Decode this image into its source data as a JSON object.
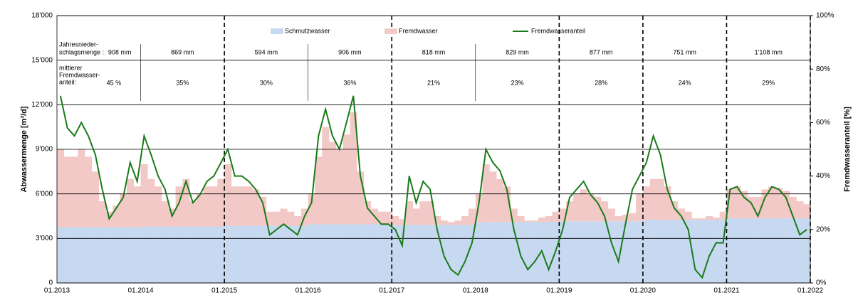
{
  "chart_data": {
    "type": "stacked-bar-line",
    "y_label": "Abwassermenge [m³/d]",
    "y2_label": "Fremdwasseranteil [%]",
    "xlim": [
      2013,
      2022
    ],
    "xticks": [
      {
        "value": 2013,
        "label": "01.2013"
      },
      {
        "value": 2014,
        "label": "01.2014"
      },
      {
        "value": 2015,
        "label": "01.2015"
      },
      {
        "value": 2016,
        "label": "01.2016"
      },
      {
        "value": 2017,
        "label": "01.2017"
      },
      {
        "value": 2018,
        "label": "01.2018"
      },
      {
        "value": 2019,
        "label": "01.2019"
      },
      {
        "value": 2020,
        "label": "01.2020"
      },
      {
        "value": 2021,
        "label": "01.2021"
      },
      {
        "value": 2022,
        "label": "01.2022"
      }
    ],
    "ylim": [
      0,
      18000
    ],
    "yticks": [
      0,
      {
        "value": 3000,
        "label": "3'000"
      },
      {
        "value": 6000,
        "label": "6'000"
      },
      {
        "value": 9000,
        "label": "9'000"
      },
      {
        "value": 12000,
        "label": "12'000"
      },
      {
        "value": 15000,
        "label": "15'000"
      },
      {
        "value": 18000,
        "label": "18'000"
      }
    ],
    "y2lim": [
      0,
      100
    ],
    "y2ticks": [
      {
        "value": 0,
        "label": "0%"
      },
      {
        "value": 20,
        "label": "20%"
      },
      {
        "value": 40,
        "label": "40%"
      },
      {
        "value": 60,
        "label": "60%"
      },
      {
        "value": 80,
        "label": "80%"
      },
      {
        "value": 100,
        "label": "100%"
      }
    ],
    "grid": true,
    "x": [
      2013,
      2013.083,
      2013.167,
      2013.25,
      2013.333,
      2013.417,
      2013.5,
      2013.583,
      2013.667,
      2013.75,
      2013.833,
      2013.917,
      2014,
      2014.083,
      2014.167,
      2014.25,
      2014.333,
      2014.417,
      2014.5,
      2014.583,
      2014.667,
      2014.75,
      2014.833,
      2014.917,
      2015,
      2015.083,
      2015.167,
      2015.25,
      2015.333,
      2015.417,
      2015.5,
      2015.583,
      2015.667,
      2015.75,
      2015.833,
      2015.917,
      2016,
      2016.083,
      2016.167,
      2016.25,
      2016.333,
      2016.417,
      2016.5,
      2016.583,
      2016.667,
      2016.75,
      2016.833,
      2016.917,
      2017,
      2017.083,
      2017.167,
      2017.25,
      2017.333,
      2017.417,
      2017.5,
      2017.583,
      2017.667,
      2017.75,
      2017.833,
      2017.917,
      2018,
      2018.083,
      2018.167,
      2018.25,
      2018.333,
      2018.417,
      2018.5,
      2018.583,
      2018.667,
      2018.75,
      2018.833,
      2018.917,
      2019,
      2019.083,
      2019.167,
      2019.25,
      2019.333,
      2019.417,
      2019.5,
      2019.583,
      2019.667,
      2019.75,
      2019.833,
      2019.917,
      2020,
      2020.083,
      2020.167,
      2020.25,
      2020.333,
      2020.417,
      2020.5,
      2020.583,
      2020.667,
      2020.75,
      2020.833,
      2020.917,
      2021,
      2021.083,
      2021.167,
      2021.25,
      2021.333,
      2021.417,
      2021.5,
      2021.583,
      2021.667,
      2021.75,
      2021.833,
      2021.917
    ],
    "series": [
      {
        "name": "Schmutzwasser",
        "color": "#c6d9f1",
        "values": [
          3750,
          3750,
          3750,
          3750,
          3750,
          3750,
          3750,
          3750,
          3750,
          3750,
          3750,
          3750,
          3800,
          3800,
          3800,
          3800,
          3800,
          3800,
          3800,
          3800,
          3800,
          3800,
          3800,
          3800,
          3850,
          3850,
          3850,
          3850,
          3850,
          3850,
          3850,
          3850,
          3850,
          3850,
          3850,
          3850,
          3950,
          3950,
          3950,
          3950,
          3950,
          3950,
          3950,
          3950,
          3950,
          3950,
          3950,
          3950,
          3900,
          3900,
          3900,
          3900,
          3900,
          3900,
          3900,
          3900,
          3900,
          3900,
          3900,
          3900,
          4100,
          4100,
          4100,
          4100,
          4100,
          4100,
          4100,
          4100,
          4100,
          4100,
          4100,
          4100,
          4150,
          4150,
          4150,
          4150,
          4150,
          4150,
          4150,
          4150,
          4150,
          4150,
          4150,
          4150,
          4250,
          4250,
          4250,
          4250,
          4250,
          4250,
          4250,
          4250,
          4250,
          4250,
          4250,
          4250,
          4350,
          4350,
          4350,
          4350,
          4350,
          4350,
          4350,
          4350,
          4350,
          4350,
          4350,
          4350
        ]
      },
      {
        "name": "Fremdwasser",
        "color": "#f2c9c6",
        "values": [
          5250,
          4750,
          4750,
          5250,
          4750,
          3750,
          1750,
          1050,
          1450,
          2250,
          3250,
          2750,
          4200,
          3200,
          2700,
          1700,
          1200,
          2700,
          3200,
          1700,
          2200,
          2700,
          2700,
          3200,
          4150,
          2650,
          2650,
          2650,
          2450,
          1950,
          950,
          950,
          1150,
          950,
          650,
          1150,
          2050,
          4550,
          6550,
          5550,
          5050,
          6050,
          7550,
          3550,
          1550,
          1050,
          850,
          850,
          600,
          400,
          1600,
          1100,
          1600,
          1600,
          600,
          300,
          200,
          300,
          600,
          1100,
          1900,
          3900,
          3400,
          2900,
          2400,
          900,
          400,
          100,
          100,
          300,
          400,
          700,
          850,
          1350,
          1850,
          2150,
          1850,
          1650,
          1350,
          850,
          350,
          450,
          550,
          1850,
          2250,
          2750,
          2750,
          2250,
          1250,
          750,
          550,
          100,
          100,
          250,
          150,
          550,
          1950,
          2150,
          1850,
          1450,
          1450,
          1950,
          2150,
          2050,
          1850,
          1450,
          1150,
          950
        ]
      },
      {
        "name": "Fremdwasseranteil",
        "color": "#1a7a1a",
        "axis": "y2",
        "values": [
          70,
          58,
          55,
          60,
          55,
          48,
          35,
          24,
          28,
          32,
          45,
          38,
          55,
          48,
          40,
          35,
          25,
          30,
          38,
          30,
          33,
          38,
          40,
          45,
          50,
          40,
          40,
          38,
          35,
          30,
          18,
          20,
          22,
          20,
          18,
          25,
          30,
          55,
          65,
          55,
          50,
          60,
          70,
          40,
          28,
          25,
          22,
          22,
          20,
          14,
          40,
          30,
          38,
          35,
          20,
          10,
          5,
          3,
          8,
          15,
          30,
          50,
          45,
          42,
          35,
          20,
          10,
          5,
          8,
          12,
          5,
          12,
          20,
          32,
          35,
          38,
          33,
          30,
          25,
          15,
          8,
          22,
          35,
          40,
          45,
          55,
          48,
          35,
          28,
          25,
          20,
          5,
          2,
          10,
          15,
          15,
          35,
          36,
          32,
          30,
          25,
          32,
          36,
          35,
          32,
          25,
          18,
          20
        ]
      }
    ],
    "annotations": {
      "precip_label": [
        "Jahresnieder-",
        "schlagsmenge :"
      ],
      "precip": [
        "908 mm",
        "869 mm",
        "594 mm",
        "906 mm",
        "818 mm",
        "829 mm",
        "877 mm",
        "751 mm",
        "1'108 mm"
      ],
      "share_label": [
        "mittlerer",
        "Fremdwasser-",
        "anteil:"
      ],
      "share": [
        "45 %",
        "35%",
        "30%",
        "36%",
        "21%",
        "23%",
        "28%",
        "24%",
        "29%"
      ]
    }
  }
}
